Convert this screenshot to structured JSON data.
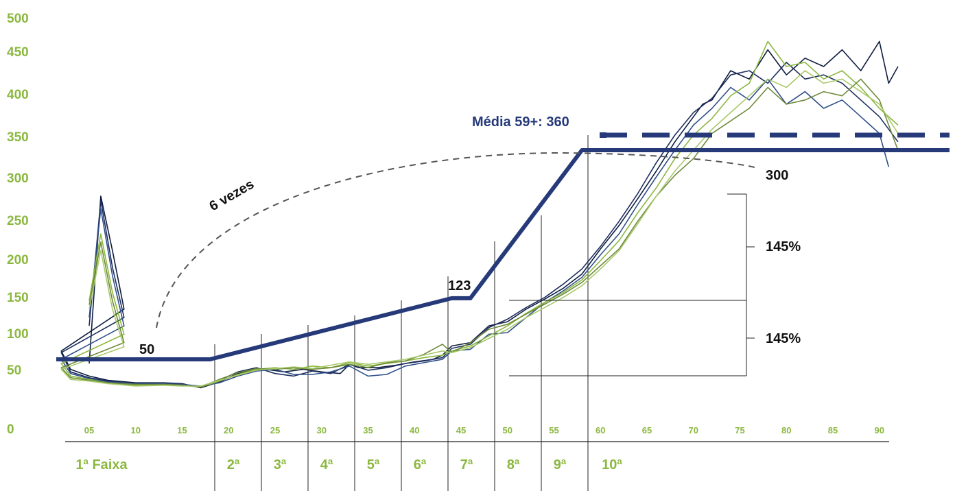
{
  "chart_data": {
    "type": "line",
    "y_ticks": [
      "500",
      "450",
      "400",
      "350",
      "300",
      "250",
      "200",
      "150",
      "100",
      "50",
      "0"
    ],
    "x_ticks": [
      "05",
      "10",
      "15",
      "20",
      "25",
      "30",
      "35",
      "40",
      "45",
      "50",
      "55",
      "60",
      "65",
      "70",
      "75",
      "80",
      "85",
      "90"
    ],
    "bands": [
      "1ª Faixa",
      "2ª",
      "3ª",
      "4ª",
      "5ª",
      "6ª",
      "7ª",
      "8ª",
      "9ª",
      "10ª"
    ],
    "step_line": {
      "color": "#263a7a",
      "points": [
        [
          0,
          50
        ],
        [
          18,
          50
        ],
        [
          44,
          123
        ],
        [
          46,
          123
        ],
        [
          58,
          300
        ],
        [
          99,
          300
        ]
      ]
    },
    "media_line": {
      "label": "Média 59+: 360",
      "value": 360,
      "x_start": 59,
      "color": "#263a7a"
    },
    "annotations": {
      "six_times": "6 vezes",
      "v50": "50",
      "v123": "123",
      "v300": "300",
      "pct_upper": "145%",
      "pct_lower": "145%"
    },
    "series": [
      {
        "color": "#0d1b3e",
        "values": [
          [
            0,
            45
          ],
          [
            0.5,
            245
          ],
          [
            1,
            180
          ],
          [
            1.5,
            110
          ],
          [
            2,
            60
          ],
          [
            3,
            38
          ],
          [
            5,
            30
          ],
          [
            7,
            25
          ],
          [
            10,
            22
          ],
          [
            13,
            22
          ],
          [
            15,
            21
          ],
          [
            17,
            16
          ],
          [
            19,
            23
          ],
          [
            21,
            33
          ],
          [
            23,
            39
          ],
          [
            24,
            38
          ],
          [
            26,
            35
          ],
          [
            28,
            38
          ],
          [
            30,
            35
          ],
          [
            32,
            33
          ],
          [
            33,
            44
          ],
          [
            34,
            40
          ],
          [
            36,
            40
          ],
          [
            38,
            43
          ],
          [
            40,
            47
          ],
          [
            42,
            50
          ],
          [
            43,
            55
          ],
          [
            44,
            66
          ],
          [
            46,
            70
          ],
          [
            48,
            90
          ],
          [
            50,
            95
          ],
          [
            52,
            110
          ],
          [
            54,
            122
          ],
          [
            56,
            135
          ],
          [
            58,
            152
          ],
          [
            60,
            182
          ],
          [
            62,
            210
          ],
          [
            64,
            242
          ],
          [
            66,
            275
          ],
          [
            68,
            310
          ],
          [
            70,
            340
          ],
          [
            71,
            355
          ],
          [
            72,
            360
          ],
          [
            74,
            395
          ],
          [
            76,
            385
          ],
          [
            78,
            420
          ],
          [
            80,
            390
          ],
          [
            82,
            410
          ],
          [
            84,
            400
          ],
          [
            86,
            420
          ],
          [
            88,
            395
          ],
          [
            90,
            430
          ],
          [
            91,
            380
          ],
          [
            92,
            400
          ]
        ]
      },
      {
        "color": "#1c2e5e",
        "values": [
          [
            0,
            90
          ],
          [
            0.5,
            240
          ],
          [
            1,
            160
          ],
          [
            1.5,
            100
          ],
          [
            2,
            58
          ],
          [
            3,
            35
          ],
          [
            5,
            28
          ],
          [
            7,
            24
          ],
          [
            10,
            21
          ],
          [
            13,
            22
          ],
          [
            15,
            20
          ],
          [
            17,
            17
          ],
          [
            19,
            25
          ],
          [
            21,
            35
          ],
          [
            23,
            40
          ],
          [
            25,
            33
          ],
          [
            27,
            30
          ],
          [
            29,
            36
          ],
          [
            31,
            33
          ],
          [
            33,
            44
          ],
          [
            35,
            37
          ],
          [
            37,
            40
          ],
          [
            39,
            45
          ],
          [
            41,
            48
          ],
          [
            43,
            52
          ],
          [
            44,
            63
          ],
          [
            46,
            68
          ],
          [
            48,
            88
          ],
          [
            50,
            98
          ],
          [
            52,
            112
          ],
          [
            54,
            124
          ],
          [
            56,
            140
          ],
          [
            58,
            158
          ],
          [
            60,
            185
          ],
          [
            62,
            215
          ],
          [
            64,
            248
          ],
          [
            66,
            285
          ],
          [
            68,
            318
          ],
          [
            70,
            345
          ],
          [
            72,
            362
          ],
          [
            74,
            390
          ],
          [
            76,
            395
          ],
          [
            78,
            380
          ],
          [
            80,
            405
          ],
          [
            82,
            385
          ],
          [
            84,
            390
          ],
          [
            86,
            380
          ],
          [
            88,
            360
          ],
          [
            90,
            340
          ],
          [
            92,
            310
          ]
        ]
      },
      {
        "color": "#2f4f8a",
        "values": [
          [
            0,
            100
          ],
          [
            0.5,
            230
          ],
          [
            1,
            150
          ],
          [
            1.5,
            90
          ],
          [
            2,
            50
          ],
          [
            3,
            33
          ],
          [
            5,
            27
          ],
          [
            7,
            23
          ],
          [
            10,
            21
          ],
          [
            13,
            21
          ],
          [
            15,
            20
          ],
          [
            17,
            18
          ],
          [
            19,
            22
          ],
          [
            21,
            30
          ],
          [
            23,
            36
          ],
          [
            25,
            38
          ],
          [
            27,
            32
          ],
          [
            29,
            32
          ],
          [
            31,
            35
          ],
          [
            33,
            42
          ],
          [
            35,
            30
          ],
          [
            37,
            32
          ],
          [
            39,
            42
          ],
          [
            41,
            46
          ],
          [
            43,
            50
          ],
          [
            44,
            60
          ],
          [
            46,
            62
          ],
          [
            48,
            80
          ],
          [
            50,
            82
          ],
          [
            52,
            100
          ],
          [
            54,
            118
          ],
          [
            56,
            132
          ],
          [
            58,
            148
          ],
          [
            60,
            175
          ],
          [
            62,
            200
          ],
          [
            64,
            235
          ],
          [
            66,
            268
          ],
          [
            68,
            300
          ],
          [
            70,
            330
          ],
          [
            72,
            350
          ],
          [
            74,
            375
          ],
          [
            76,
            360
          ],
          [
            78,
            385
          ],
          [
            80,
            355
          ],
          [
            82,
            370
          ],
          [
            84,
            350
          ],
          [
            86,
            360
          ],
          [
            88,
            340
          ],
          [
            90,
            320
          ],
          [
            91,
            280
          ]
        ]
      },
      {
        "color": "#8bb83f",
        "values": [
          [
            0,
            120
          ],
          [
            0.5,
            200
          ],
          [
            1,
            130
          ],
          [
            1.5,
            80
          ],
          [
            2,
            45
          ],
          [
            3,
            30
          ],
          [
            5,
            26
          ],
          [
            7,
            22
          ],
          [
            10,
            19
          ],
          [
            13,
            20
          ],
          [
            15,
            19
          ],
          [
            17,
            17
          ],
          [
            19,
            24
          ],
          [
            21,
            32
          ],
          [
            23,
            38
          ],
          [
            25,
            40
          ],
          [
            27,
            38
          ],
          [
            29,
            42
          ],
          [
            31,
            40
          ],
          [
            33,
            46
          ],
          [
            35,
            42
          ],
          [
            37,
            45
          ],
          [
            39,
            48
          ],
          [
            41,
            52
          ],
          [
            43,
            55
          ],
          [
            44,
            60
          ],
          [
            46,
            66
          ],
          [
            48,
            78
          ],
          [
            50,
            90
          ],
          [
            52,
            105
          ],
          [
            54,
            118
          ],
          [
            56,
            130
          ],
          [
            58,
            145
          ],
          [
            60,
            168
          ],
          [
            62,
            192
          ],
          [
            64,
            225
          ],
          [
            66,
            255
          ],
          [
            68,
            290
          ],
          [
            70,
            318
          ],
          [
            72,
            338
          ],
          [
            74,
            365
          ],
          [
            76,
            380
          ],
          [
            78,
            430
          ],
          [
            80,
            400
          ],
          [
            82,
            405
          ],
          [
            84,
            385
          ],
          [
            86,
            395
          ],
          [
            88,
            375
          ],
          [
            90,
            350
          ],
          [
            92,
            330
          ]
        ]
      },
      {
        "color": "#6e8a3a",
        "values": [
          [
            0,
            115
          ],
          [
            0.5,
            190
          ],
          [
            1,
            120
          ],
          [
            1.5,
            70
          ],
          [
            2,
            40
          ],
          [
            3,
            28
          ],
          [
            5,
            25
          ],
          [
            7,
            22
          ],
          [
            10,
            20
          ],
          [
            13,
            20
          ],
          [
            15,
            19
          ],
          [
            17,
            17
          ],
          [
            19,
            26
          ],
          [
            21,
            34
          ],
          [
            23,
            39
          ],
          [
            25,
            38
          ],
          [
            27,
            40
          ],
          [
            29,
            38
          ],
          [
            31,
            40
          ],
          [
            33,
            44
          ],
          [
            35,
            40
          ],
          [
            37,
            46
          ],
          [
            39,
            48
          ],
          [
            41,
            56
          ],
          [
            43,
            68
          ],
          [
            44,
            58
          ],
          [
            46,
            70
          ],
          [
            48,
            86
          ],
          [
            50,
            92
          ],
          [
            52,
            104
          ],
          [
            54,
            116
          ],
          [
            56,
            128
          ],
          [
            58,
            142
          ],
          [
            60,
            162
          ],
          [
            62,
            182
          ],
          [
            64,
            215
          ],
          [
            66,
            245
          ],
          [
            68,
            270
          ],
          [
            70,
            290
          ],
          [
            72,
            320
          ],
          [
            74,
            335
          ],
          [
            76,
            350
          ],
          [
            78,
            375
          ],
          [
            80,
            355
          ],
          [
            82,
            360
          ],
          [
            84,
            370
          ],
          [
            86,
            365
          ],
          [
            88,
            385
          ],
          [
            90,
            360
          ],
          [
            92,
            300
          ]
        ]
      },
      {
        "color": "#a8c96b",
        "values": [
          [
            0,
            110
          ],
          [
            0.5,
            180
          ],
          [
            1,
            110
          ],
          [
            1.5,
            65
          ],
          [
            2,
            38
          ],
          [
            3,
            26
          ],
          [
            5,
            24
          ],
          [
            7,
            21
          ],
          [
            10,
            18
          ],
          [
            13,
            19
          ],
          [
            15,
            18
          ],
          [
            17,
            18
          ],
          [
            19,
            25
          ],
          [
            21,
            31
          ],
          [
            23,
            37
          ],
          [
            25,
            39
          ],
          [
            27,
            41
          ],
          [
            29,
            39
          ],
          [
            31,
            43
          ],
          [
            33,
            47
          ],
          [
            35,
            44
          ],
          [
            37,
            47
          ],
          [
            39,
            50
          ],
          [
            41,
            55
          ],
          [
            43,
            60
          ],
          [
            44,
            58
          ],
          [
            46,
            64
          ],
          [
            48,
            75
          ],
          [
            50,
            86
          ],
          [
            52,
            100
          ],
          [
            54,
            112
          ],
          [
            56,
            124
          ],
          [
            58,
            138
          ],
          [
            60,
            158
          ],
          [
            62,
            180
          ],
          [
            64,
            212
          ],
          [
            66,
            245
          ],
          [
            68,
            275
          ],
          [
            70,
            300
          ],
          [
            72,
            325
          ],
          [
            74,
            345
          ],
          [
            76,
            365
          ],
          [
            78,
            385
          ],
          [
            80,
            375
          ],
          [
            82,
            395
          ],
          [
            84,
            380
          ],
          [
            86,
            385
          ],
          [
            88,
            370
          ],
          [
            90,
            355
          ],
          [
            92,
            320
          ]
        ]
      }
    ]
  }
}
